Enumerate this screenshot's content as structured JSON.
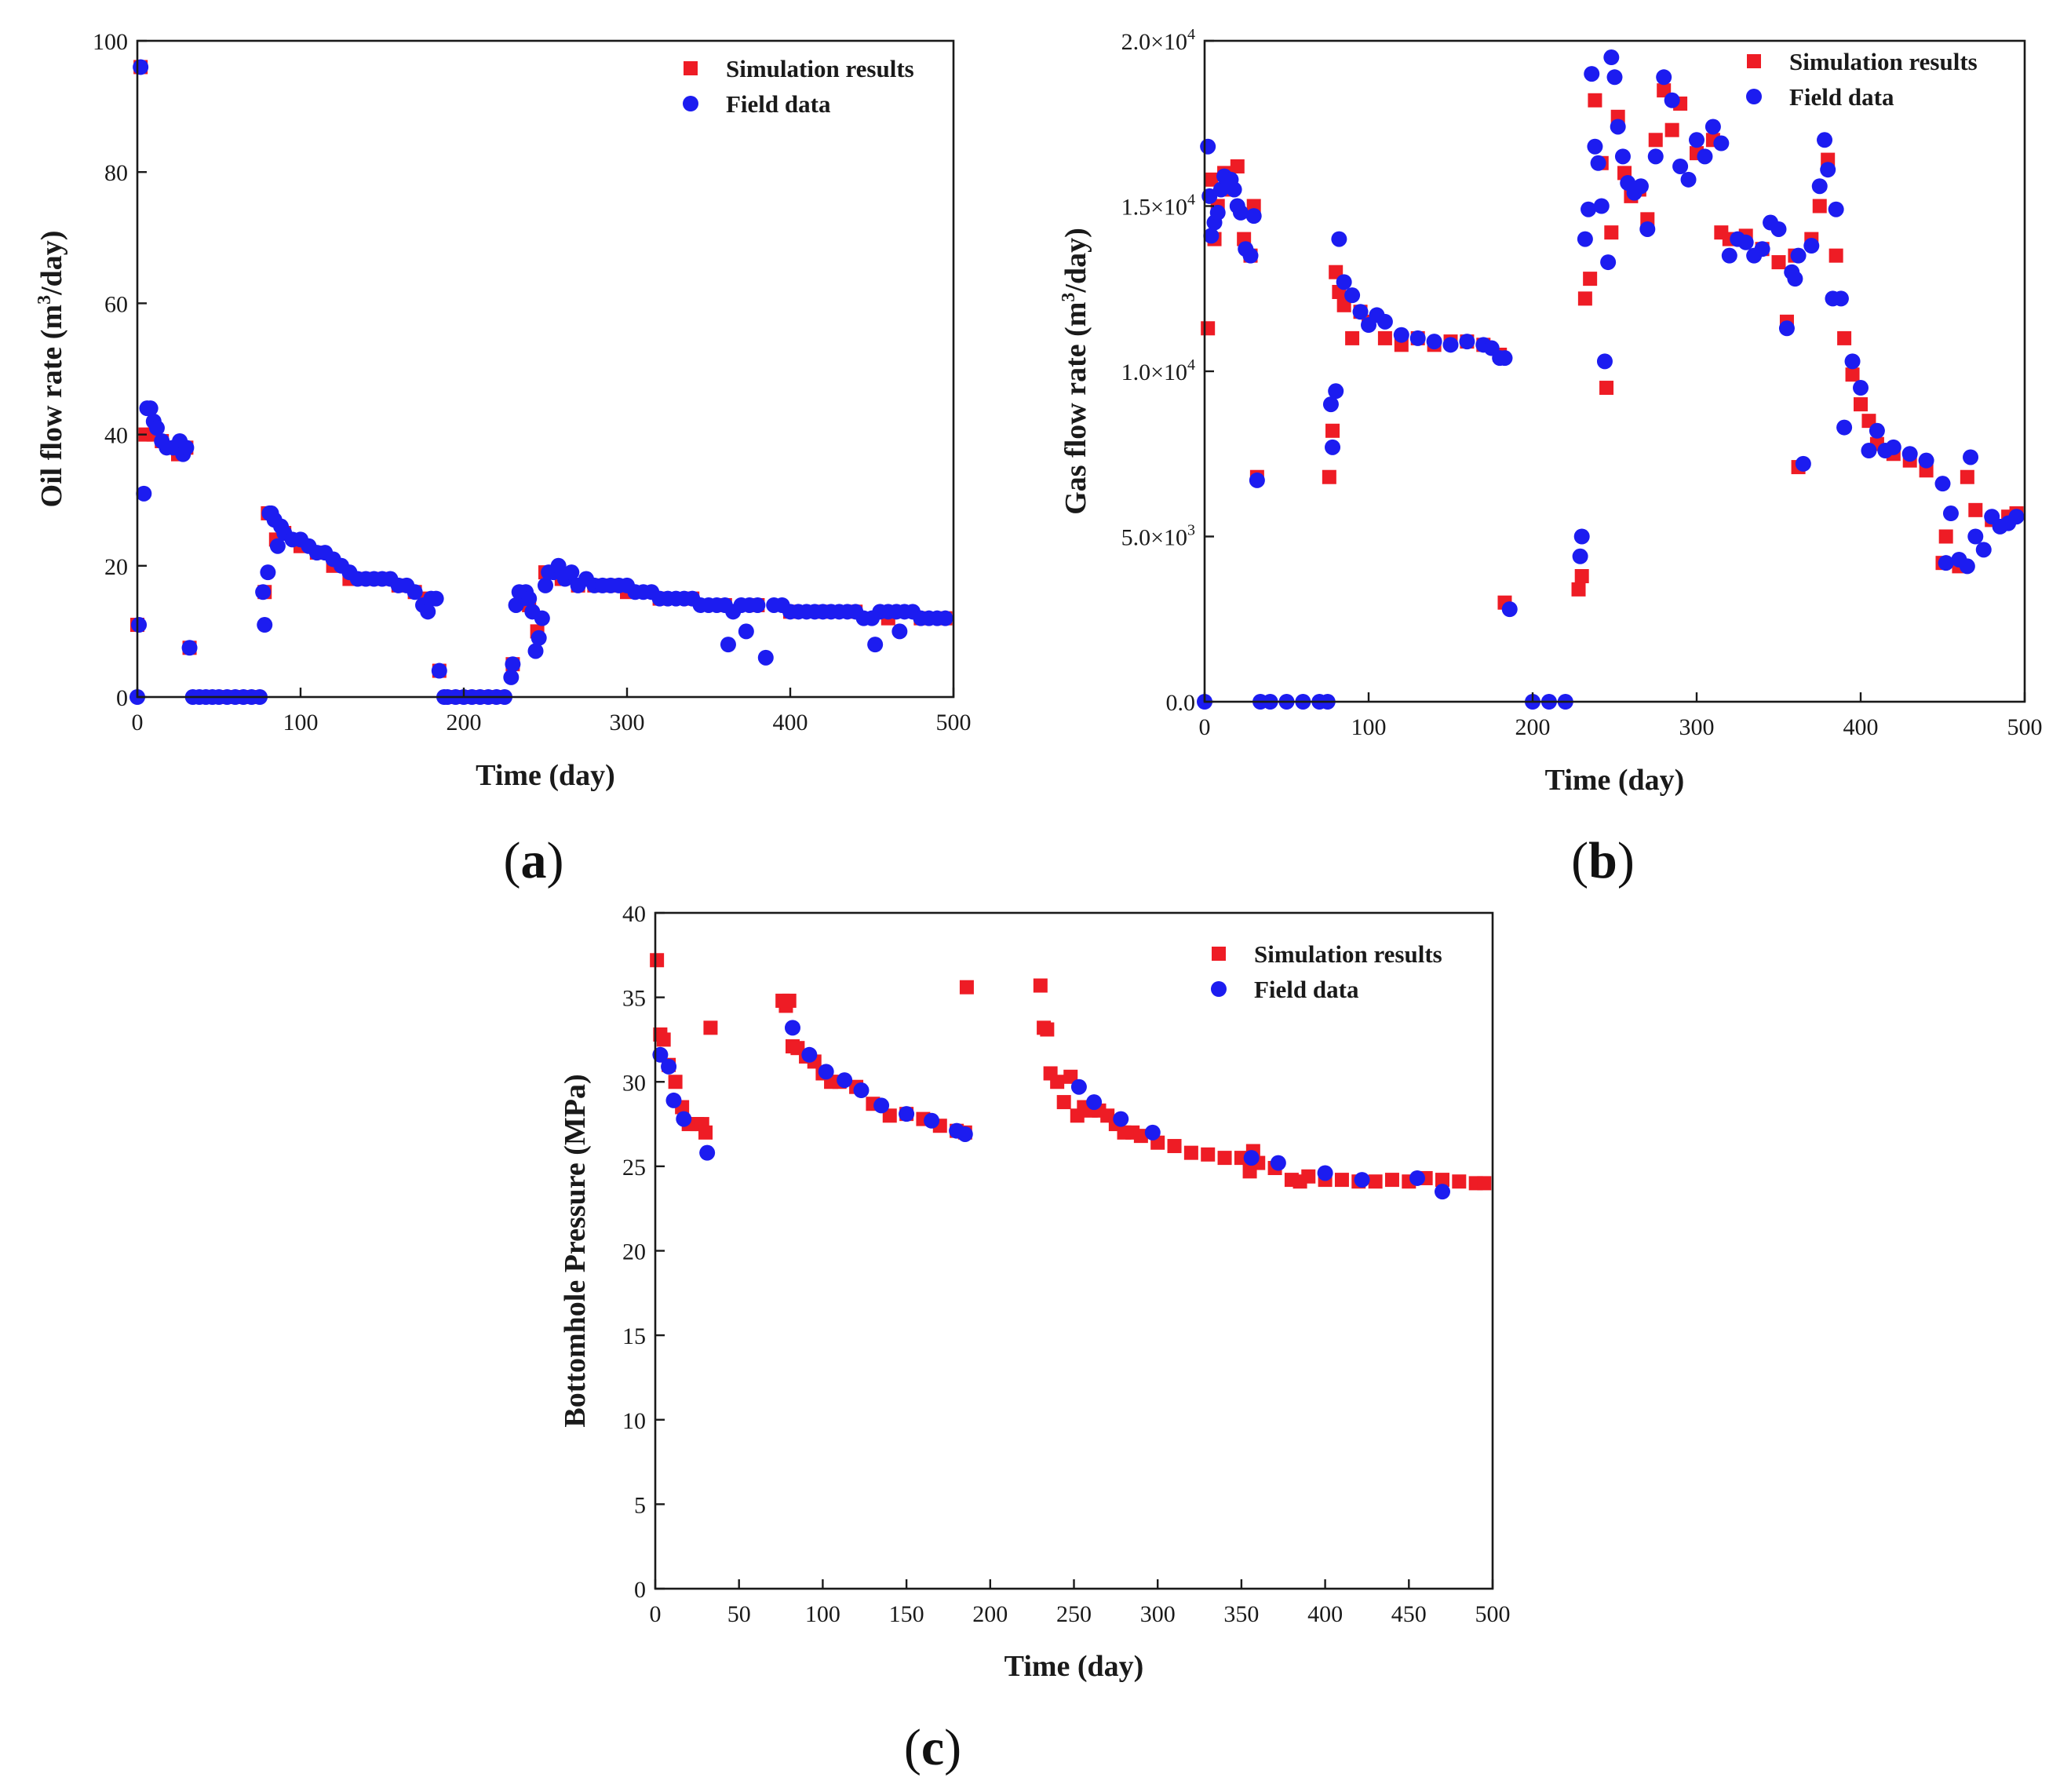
{
  "colors": {
    "simulation": "#ee1c25",
    "field": "#1c1cf0",
    "axis": "#1a1a1a"
  },
  "chart_data": [
    {
      "id": "a",
      "type": "scatter",
      "panel_label": "a",
      "xlabel": "Time (day)",
      "ylabel_parts": [
        "Oil flow rate (m",
        "3",
        "/day)"
      ],
      "xlim": [
        0,
        500
      ],
      "ylim": [
        0,
        100
      ],
      "xticks": [
        0,
        100,
        200,
        300,
        400,
        500
      ],
      "yticks": [
        0,
        20,
        40,
        60,
        80,
        100
      ],
      "xtick_labels": [
        "0",
        "100",
        "200",
        "300",
        "400",
        "500"
      ],
      "ytick_labels": [
        "0",
        "20",
        "40",
        "60",
        "80",
        "100"
      ],
      "legend_position": "top-right",
      "series": [
        {
          "name": "Simulation results",
          "marker": "square",
          "x": [
            0,
            2,
            5,
            10,
            15,
            20,
            25,
            30,
            32,
            40,
            50,
            60,
            70,
            78,
            80,
            85,
            90,
            100,
            110,
            120,
            130,
            140,
            150,
            160,
            170,
            178,
            185,
            190,
            200,
            210,
            220,
            230,
            235,
            240,
            245,
            250,
            260,
            270,
            280,
            290,
            300,
            320,
            340,
            360,
            380,
            400,
            420,
            440,
            460,
            480,
            495
          ],
          "y": [
            11,
            96,
            40,
            40,
            39,
            38,
            37,
            38,
            7.5,
            0,
            0,
            0,
            0,
            16,
            28,
            24,
            25,
            23,
            22,
            20,
            18,
            18,
            18,
            17,
            16,
            15,
            4,
            0,
            0,
            0,
            0,
            5,
            15,
            14,
            10,
            19,
            18,
            17,
            17,
            17,
            16,
            15,
            15,
            14,
            14,
            13,
            13,
            13,
            12,
            12,
            12
          ]
        },
        {
          "name": "Field data",
          "marker": "circle",
          "x": [
            0,
            1,
            2,
            4,
            6,
            8,
            10,
            12,
            15,
            18,
            22,
            26,
            28,
            30,
            32,
            34,
            38,
            42,
            46,
            50,
            55,
            60,
            65,
            70,
            75,
            77,
            78,
            80,
            81,
            82,
            84,
            86,
            88,
            90,
            95,
            100,
            105,
            110,
            115,
            120,
            125,
            130,
            135,
            140,
            145,
            150,
            155,
            160,
            165,
            170,
            175,
            178,
            180,
            183,
            185,
            188,
            190,
            195,
            200,
            205,
            210,
            215,
            220,
            225,
            229,
            230,
            232,
            234,
            236,
            238,
            240,
            242,
            244,
            246,
            248,
            250,
            252,
            255,
            258,
            262,
            266,
            270,
            275,
            280,
            285,
            290,
            295,
            300,
            305,
            310,
            315,
            320,
            325,
            330,
            335,
            340,
            345,
            350,
            355,
            360,
            362,
            365,
            370,
            373,
            375,
            380,
            385,
            390,
            395,
            400,
            405,
            410,
            415,
            420,
            425,
            430,
            435,
            440,
            445,
            450,
            452,
            455,
            460,
            465,
            467,
            470,
            475,
            480,
            485,
            490,
            495
          ],
          "y": [
            0,
            11,
            96,
            31,
            44,
            44,
            42,
            41,
            39,
            38,
            38,
            39,
            37,
            38,
            7.5,
            0,
            0,
            0,
            0,
            0,
            0,
            0,
            0,
            0,
            0,
            16,
            11,
            19,
            28,
            28,
            27,
            23,
            26,
            25,
            24,
            24,
            23,
            22,
            22,
            21,
            20,
            19,
            18,
            18,
            18,
            18,
            18,
            17,
            17,
            16,
            14,
            13,
            15,
            15,
            4,
            0,
            0,
            0,
            0,
            0,
            0,
            0,
            0,
            0,
            3,
            5,
            14,
            16,
            15,
            16,
            15,
            13,
            7,
            9,
            12,
            17,
            19,
            19,
            20,
            18,
            19,
            17,
            18,
            17,
            17,
            17,
            17,
            17,
            16,
            16,
            16,
            15,
            15,
            15,
            15,
            15,
            14,
            14,
            14,
            14,
            8,
            13,
            14,
            10,
            14,
            14,
            6,
            14,
            14,
            13,
            13,
            13,
            13,
            13,
            13,
            13,
            13,
            13,
            12,
            12,
            8,
            13,
            13,
            13,
            10,
            13,
            13,
            12,
            12,
            12,
            12
          ]
        }
      ]
    },
    {
      "id": "b",
      "type": "scatter",
      "panel_label": "b",
      "xlabel": "Time (day)",
      "ylabel_parts": [
        "Gas flow rate (m",
        "3",
        "/day)"
      ],
      "xlim": [
        0,
        500
      ],
      "ylim": [
        0,
        20000
      ],
      "xticks": [
        0,
        100,
        200,
        300,
        400,
        500
      ],
      "yticks": [
        0,
        5000,
        10000,
        15000,
        20000
      ],
      "xtick_labels": [
        "0",
        "100",
        "200",
        "300",
        "400",
        "500"
      ],
      "ytick_labels": [
        {
          "base": "0.0",
          "exp": ""
        },
        {
          "base": "5.0×10",
          "exp": "3"
        },
        {
          "base": "1.0×10",
          "exp": "4"
        },
        {
          "base": "1.5×10",
          "exp": "4"
        },
        {
          "base": "2.0×10",
          "exp": "4"
        }
      ],
      "legend_position": "top-right",
      "series": [
        {
          "name": "Simulation results",
          "marker": "square",
          "x": [
            2,
            4,
            6,
            8,
            12,
            16,
            20,
            24,
            28,
            30,
            32,
            76,
            78,
            80,
            82,
            85,
            90,
            95,
            100,
            110,
            120,
            130,
            140,
            150,
            160,
            170,
            180,
            183,
            228,
            230,
            232,
            235,
            238,
            242,
            245,
            248,
            252,
            256,
            260,
            265,
            270,
            275,
            280,
            285,
            290,
            300,
            310,
            315,
            320,
            330,
            340,
            350,
            355,
            360,
            362,
            370,
            375,
            380,
            385,
            390,
            395,
            400,
            405,
            410,
            420,
            430,
            440,
            450,
            452,
            460,
            465,
            470,
            480,
            490,
            495
          ],
          "y": [
            11300,
            15800,
            14000,
            15000,
            16000,
            15500,
            16200,
            14000,
            13500,
            15000,
            6800,
            6800,
            8200,
            13000,
            12400,
            12000,
            11000,
            11800,
            11500,
            11000,
            10800,
            11000,
            10800,
            10900,
            10900,
            10800,
            10500,
            3000,
            3400,
            3800,
            12200,
            12800,
            18200,
            16300,
            9500,
            14200,
            17700,
            16000,
            15300,
            15500,
            14600,
            17000,
            18500,
            17300,
            18100,
            16600,
            17000,
            14200,
            14000,
            14100,
            13700,
            13300,
            11500,
            13500,
            7100,
            14000,
            15000,
            16400,
            13500,
            11000,
            9900,
            9000,
            8500,
            7800,
            7500,
            7300,
            7000,
            4200,
            5000,
            4100,
            6800,
            5800,
            5500,
            5600,
            5700
          ]
        },
        {
          "name": "Field data",
          "marker": "circle",
          "x": [
            0,
            2,
            3,
            4,
            6,
            8,
            10,
            12,
            14,
            16,
            18,
            20,
            22,
            25,
            28,
            30,
            32,
            34,
            40,
            50,
            60,
            70,
            75,
            77,
            78,
            80,
            82,
            85,
            90,
            95,
            100,
            105,
            110,
            120,
            130,
            140,
            150,
            160,
            170,
            175,
            180,
            183,
            186,
            200,
            210,
            220,
            229,
            230,
            232,
            234,
            236,
            238,
            240,
            242,
            244,
            246,
            248,
            250,
            252,
            255,
            258,
            262,
            266,
            270,
            275,
            280,
            285,
            290,
            295,
            300,
            305,
            310,
            315,
            320,
            325,
            330,
            335,
            340,
            345,
            350,
            355,
            358,
            360,
            362,
            365,
            370,
            375,
            378,
            380,
            383,
            385,
            388,
            390,
            395,
            400,
            405,
            410,
            415,
            420,
            430,
            440,
            450,
            452,
            455,
            460,
            465,
            467,
            470,
            475,
            480,
            485,
            490,
            495
          ],
          "y": [
            0,
            16800,
            15300,
            14100,
            14500,
            14800,
            15500,
            15900,
            15800,
            15800,
            15500,
            15000,
            14800,
            13700,
            13500,
            14700,
            6700,
            0,
            0,
            0,
            0,
            0,
            0,
            9000,
            7700,
            9400,
            14000,
            12700,
            12300,
            11800,
            11400,
            11700,
            11500,
            11100,
            11000,
            10900,
            10800,
            10900,
            10800,
            10700,
            10400,
            10400,
            2800,
            0,
            0,
            0,
            4400,
            5000,
            14000,
            14900,
            19000,
            16800,
            16300,
            15000,
            10300,
            13300,
            19500,
            18900,
            17400,
            16500,
            15700,
            15400,
            15600,
            14300,
            16500,
            18900,
            18200,
            16200,
            15800,
            17000,
            16500,
            17400,
            16900,
            13500,
            14000,
            13900,
            13500,
            13700,
            14500,
            14300,
            11300,
            13000,
            12800,
            13500,
            7200,
            13800,
            15600,
            17000,
            16100,
            12200,
            14900,
            12200,
            8300,
            10300,
            9500,
            7600,
            8200,
            7600,
            7700,
            7500,
            7300,
            6600,
            4200,
            5700,
            4300,
            4100,
            7400,
            5000,
            4600,
            5600,
            5300,
            5400,
            5600
          ]
        }
      ]
    },
    {
      "id": "c",
      "type": "scatter",
      "panel_label": "c",
      "xlabel": "Time (day)",
      "ylabel_parts": [
        "Bottomhole Pressure (MPa)",
        "",
        ""
      ],
      "xlim": [
        0,
        500
      ],
      "ylim": [
        0,
        40
      ],
      "xticks": [
        0,
        50,
        100,
        150,
        200,
        250,
        300,
        350,
        400,
        450,
        500
      ],
      "yticks": [
        0,
        5,
        10,
        15,
        20,
        25,
        30,
        35,
        40
      ],
      "xtick_labels": [
        "0",
        "50",
        "100",
        "150",
        "200",
        "250",
        "300",
        "350",
        "400",
        "450",
        "500"
      ],
      "ytick_labels": [
        "0",
        "5",
        "10",
        "15",
        "20",
        "25",
        "30",
        "35",
        "40"
      ],
      "legend_position": "top-right",
      "series": [
        {
          "name": "Simulation results",
          "marker": "square",
          "x": [
            1,
            3,
            5,
            8,
            12,
            16,
            20,
            25,
            28,
            30,
            33,
            76,
            78,
            80,
            82,
            85,
            90,
            95,
            100,
            105,
            110,
            120,
            130,
            140,
            150,
            160,
            170,
            180,
            185,
            186,
            230,
            232,
            234,
            236,
            240,
            244,
            248,
            252,
            256,
            260,
            265,
            270,
            275,
            280,
            285,
            290,
            300,
            310,
            320,
            330,
            340,
            350,
            355,
            357,
            360,
            370,
            380,
            385,
            390,
            400,
            410,
            420,
            430,
            440,
            450,
            460,
            470,
            480,
            490,
            495
          ],
          "y": [
            37.2,
            32.8,
            32.5,
            31,
            30,
            28.5,
            27.5,
            27.5,
            27.5,
            27,
            33.2,
            34.8,
            34.5,
            34.8,
            32.1,
            32,
            31.5,
            31.2,
            30.5,
            30,
            30,
            29.7,
            28.7,
            28,
            28.1,
            27.8,
            27.4,
            27.1,
            27,
            35.6,
            35.7,
            33.2,
            33.1,
            30.5,
            30,
            28.8,
            30.3,
            28,
            28.5,
            28.3,
            28.3,
            28,
            27.5,
            27,
            27,
            26.8,
            26.4,
            26.2,
            25.8,
            25.7,
            25.5,
            25.5,
            24.7,
            25.9,
            25.2,
            24.9,
            24.2,
            24.1,
            24.4,
            24.2,
            24.2,
            24.1,
            24.1,
            24.2,
            24.1,
            24.3,
            24.2,
            24.1,
            24,
            24
          ]
        },
        {
          "name": "Field data",
          "marker": "circle",
          "x": [
            3,
            8,
            11,
            17,
            31,
            82,
            92,
            102,
            113,
            123,
            135,
            150,
            165,
            180,
            185,
            253,
            262,
            278,
            297,
            356,
            372,
            400,
            422,
            455,
            470
          ],
          "y": [
            31.6,
            30.9,
            28.9,
            27.8,
            25.8,
            33.2,
            31.6,
            30.6,
            30.1,
            29.5,
            28.6,
            28.1,
            27.7,
            27.1,
            26.9,
            29.7,
            28.8,
            27.8,
            27,
            25.5,
            25.2,
            24.6,
            24.2,
            24.3,
            23.5
          ]
        }
      ]
    }
  ]
}
